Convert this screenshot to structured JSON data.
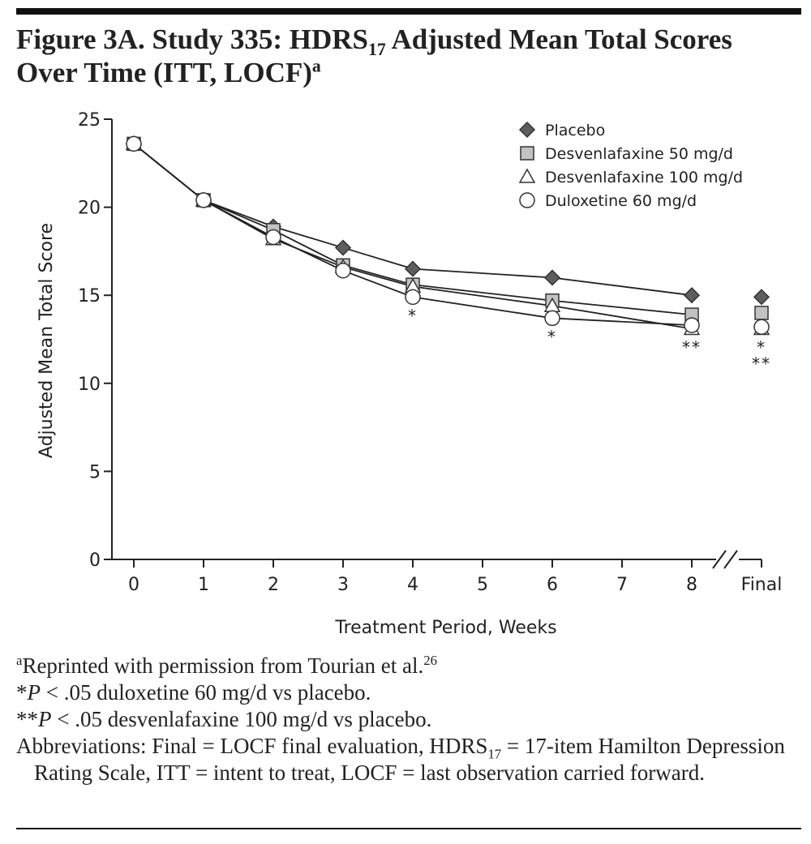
{
  "chart_data": {
    "type": "line",
    "title": [
      "Figure 3A. Study 335: HDRS",
      {
        "text": "17",
        "style": "sub"
      },
      " Adjusted Mean Total Scores Over Time (ITT, LOCF)",
      {
        "text": "a",
        "style": "sup"
      }
    ],
    "xlabel": "Treatment Period, Weeks",
    "ylabel": "Adjusted Mean Total Score",
    "x": [
      0,
      1,
      2,
      3,
      4,
      6,
      8
    ],
    "xlim": [
      0,
      8
    ],
    "xticks": [
      0,
      1,
      2,
      3,
      4,
      5,
      6,
      7,
      8
    ],
    "final_label": "Final",
    "ylim": [
      0,
      25
    ],
    "yticks": [
      0,
      5,
      10,
      15,
      20,
      25
    ],
    "series": [
      {
        "name": "Placebo",
        "marker": "diamond",
        "color": "#5e5e5e",
        "values": [
          23.6,
          20.4,
          18.9,
          17.7,
          16.5,
          16.0,
          15.0
        ],
        "final": 14.9
      },
      {
        "name": "Desvenlafaxine 50 mg/d",
        "marker": "square",
        "color": "#c2c2c2",
        "values": [
          23.6,
          20.4,
          18.7,
          16.7,
          15.6,
          14.7,
          13.9
        ],
        "final": 14.0
      },
      {
        "name": "Desvenlafaxine 100 mg/d",
        "marker": "triangle",
        "color": "#ffffff",
        "values": [
          23.6,
          20.4,
          18.2,
          16.6,
          15.5,
          14.4,
          13.1
        ],
        "final": 13.1
      },
      {
        "name": "Duloxetine 60 mg/d",
        "marker": "circle",
        "color": "#ffffff",
        "values": [
          23.6,
          20.4,
          18.3,
          16.4,
          14.9,
          13.7,
          13.3
        ],
        "final": 13.2
      }
    ],
    "annotations": [
      {
        "x": 4,
        "text": "*"
      },
      {
        "x": 6,
        "text": "*"
      },
      {
        "x": 8,
        "text": "**"
      }
    ],
    "final_annotation": [
      "*",
      "**"
    ],
    "legend": "upper right",
    "notes": [
      [
        {
          "text": "a",
          "style": "sup"
        },
        "Reprinted with permission from Tourian et al.",
        {
          "text": "26",
          "style": "sup"
        }
      ],
      [
        "*",
        {
          "text": "P",
          "style": "italic"
        },
        " < .05 duloxetine 60 mg/d vs placebo."
      ],
      [
        "**",
        {
          "text": "P",
          "style": "italic"
        },
        " < .05 desvenlafaxine 100 mg/d vs placebo."
      ],
      [
        "Abbreviations: Final = LOCF final evaluation, HDRS",
        {
          "text": "17",
          "style": "sub"
        },
        " = 17-item Hamilton Depression Rating Scale, ITT = intent to treat, LOCF = last observation carried forward."
      ]
    ]
  }
}
